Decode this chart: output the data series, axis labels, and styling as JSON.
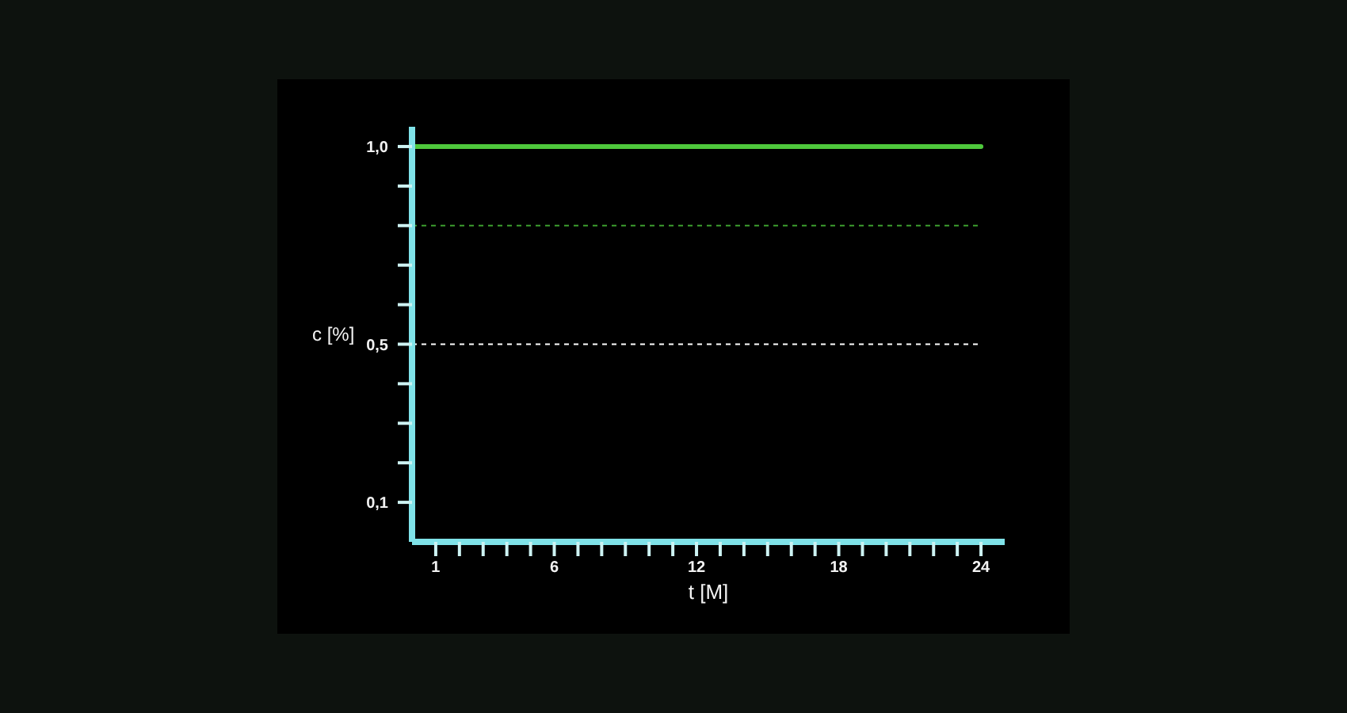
{
  "chart_data": {
    "type": "line",
    "xlabel": "t [M]",
    "ylabel": "c [%]",
    "series": [
      {
        "color": "#4ec83c",
        "x": [
          0,
          24
        ],
        "values": [
          1.0,
          1.0
        ]
      }
    ],
    "xlim": [
      0,
      25
    ],
    "xticks": [
      1,
      {
        "value": 2,
        "label": null
      },
      {
        "value": 3,
        "label": null
      },
      {
        "value": 4,
        "label": null
      },
      {
        "value": 5,
        "label": null
      },
      6,
      {
        "value": 7,
        "label": null
      },
      {
        "value": 8,
        "label": null
      },
      {
        "value": 9,
        "label": null
      },
      {
        "value": 10,
        "label": null
      },
      {
        "value": 11,
        "label": null
      },
      12,
      {
        "value": 13,
        "label": null
      },
      {
        "value": 14,
        "label": null
      },
      {
        "value": 15,
        "label": null
      },
      {
        "value": 16,
        "label": null
      },
      {
        "value": 17,
        "label": null
      },
      18,
      {
        "value": 19,
        "label": null
      },
      {
        "value": 20,
        "label": null
      },
      {
        "value": 21,
        "label": null
      },
      {
        "value": 22,
        "label": null
      },
      {
        "value": 23,
        "label": null
      },
      24
    ],
    "ylim": [
      0,
      1.05
    ],
    "yticks": [
      {
        "value": 0.1,
        "label": "0,1"
      },
      {
        "value": 0.2,
        "label": null
      },
      {
        "value": 0.3,
        "label": null
      },
      {
        "value": 0.4,
        "label": null
      },
      {
        "value": 0.5,
        "label": "0,5"
      },
      {
        "value": 0.6,
        "label": null
      },
      {
        "value": 0.7,
        "label": null
      },
      {
        "value": 0.8,
        "label": null
      },
      {
        "value": 0.9,
        "label": null
      },
      {
        "value": 1.0,
        "label": "1,0"
      }
    ],
    "ref_lines": [
      {
        "axis": "y",
        "value": 0.8,
        "color": "#3c9e2e",
        "line_style": "dashed"
      },
      {
        "axis": "y",
        "value": 0.5,
        "color": "#ffffff",
        "line_style": "dashed"
      }
    ],
    "marker": "none",
    "line_style": "solid"
  }
}
